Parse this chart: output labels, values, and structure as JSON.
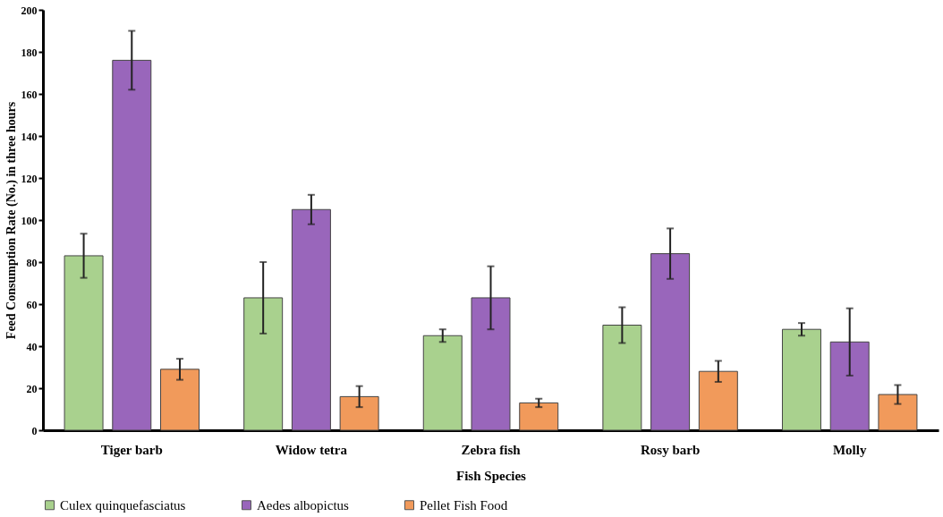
{
  "chart_data": {
    "type": "bar",
    "xlabel": "Fish Species",
    "ylabel": "Feed  Consumption Rate (No.) in three  hours",
    "categories": [
      "Tiger barb",
      "Widow tetra",
      "Zebra fish",
      "Rosy barb",
      "Molly"
    ],
    "series": [
      {
        "name": "Culex quinquefasciatus",
        "color": "#a9d18e",
        "values": [
          83,
          63,
          45,
          50,
          48
        ],
        "errors": [
          10.5,
          17,
          3,
          8.5,
          3
        ]
      },
      {
        "name": "Aedes albopictus",
        "color": "#9966bb",
        "values": [
          176,
          105,
          63,
          84,
          42
        ],
        "errors": [
          14,
          7,
          15,
          12,
          16
        ]
      },
      {
        "name": "Pellet Fish Food",
        "color": "#f19a5b",
        "values": [
          29,
          16,
          13,
          28,
          17
        ],
        "errors": [
          5,
          5,
          2,
          5,
          4.5
        ]
      }
    ],
    "ylim": [
      0,
      200
    ],
    "yticks": [
      0,
      20,
      40,
      60,
      80,
      100,
      120,
      140,
      160,
      180,
      200
    ],
    "grid": false,
    "legend": "bottom"
  }
}
